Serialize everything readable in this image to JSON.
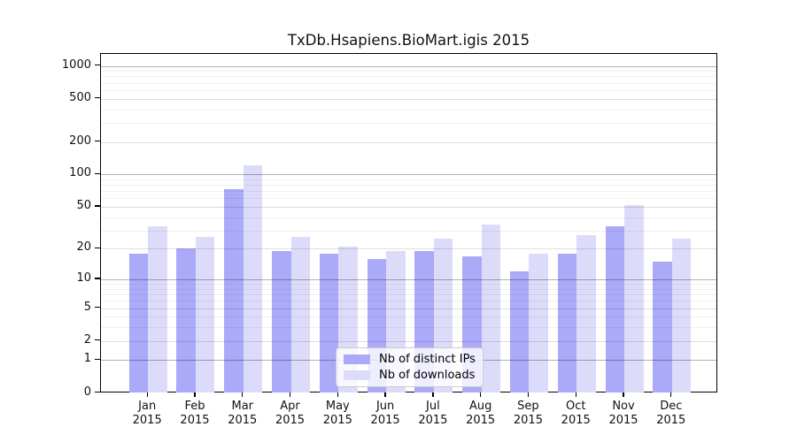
{
  "title": "TxDb.Hsapiens.BioMart.igis 2015",
  "legend": {
    "items": [
      {
        "label": "Nb of distinct IPs",
        "color": "#aaaaf8"
      },
      {
        "label": "Nb of downloads",
        "color": "#dcdcfa"
      }
    ]
  },
  "chart_data": {
    "type": "bar",
    "title": "TxDb.Hsapiens.BioMart.igis 2015",
    "categories": [
      "Jan 2015",
      "Feb 2015",
      "Mar 2015",
      "Apr 2015",
      "May 2015",
      "Jun 2015",
      "Jul 2015",
      "Aug 2015",
      "Sep 2015",
      "Oct 2015",
      "Nov 2015",
      "Dec 2015"
    ],
    "months": [
      "Jan",
      "Feb",
      "Mar",
      "Apr",
      "May",
      "Jun",
      "Jul",
      "Aug",
      "Sep",
      "Oct",
      "Nov",
      "Dec"
    ],
    "year_label": "2015",
    "series": [
      {
        "name": "Nb of distinct IPs",
        "color": "#aaaaf8",
        "values": [
          18,
          20,
          73,
          19,
          18,
          16,
          19,
          17,
          12,
          18,
          33,
          15
        ]
      },
      {
        "name": "Nb of downloads",
        "color": "#dcdcfa",
        "values": [
          33,
          26,
          122,
          26,
          21,
          19,
          25,
          34,
          18,
          27,
          52,
          25
        ]
      }
    ],
    "xlabel": "",
    "ylabel": "",
    "y_scale": "log1p",
    "y_ticks": [
      0,
      1,
      2,
      5,
      10,
      20,
      50,
      100,
      200,
      500,
      1000
    ],
    "y_minor_gridlines": [
      3,
      4,
      6,
      7,
      8,
      9,
      30,
      40,
      60,
      70,
      80,
      90,
      300,
      400,
      600,
      700,
      800,
      900
    ],
    "ylim": [
      0,
      1300
    ],
    "grid": true,
    "legend_position": "inside-bottom-center"
  }
}
